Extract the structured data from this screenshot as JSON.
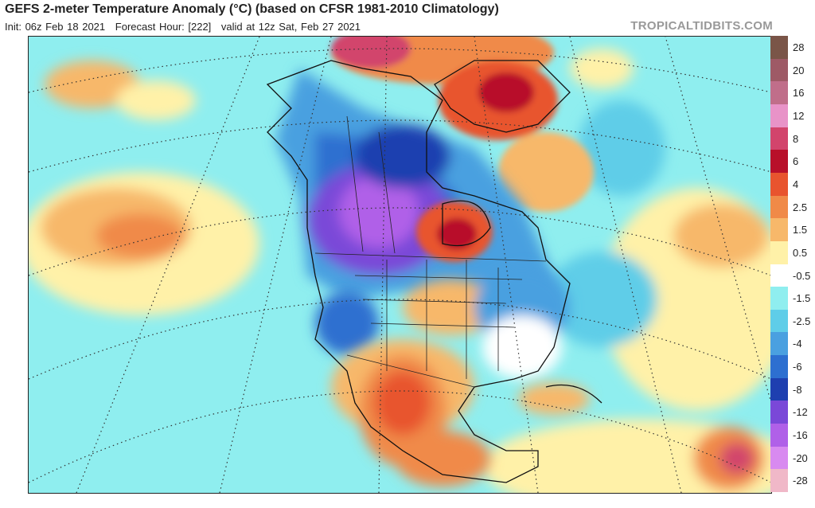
{
  "header": {
    "title": "GEFS 2-meter Temperature Anomaly (°C) (based on CFSR 1981-2010 Climatology)",
    "init": "Init: 06z Feb 18 2021",
    "forecast_hour": "Forecast Hour: [222]",
    "valid": "valid at 12z Sat, Feb 27 2021",
    "brand": "TROPICALTIDBITS.COM"
  },
  "map": {
    "region": "North America",
    "variable": "2-meter temperature anomaly",
    "units": "°C"
  },
  "colorbar": {
    "labels": [
      "28",
      "20",
      "16",
      "12",
      "8",
      "6",
      "4",
      "2.5",
      "1.5",
      "0.5",
      "-0.5",
      "-1.5",
      "-2.5",
      "-4",
      "-6",
      "-8",
      "-12",
      "-16",
      "-20",
      "-28"
    ],
    "colors": [
      "#7a5548",
      "#9e5a66",
      "#c06e8a",
      "#e893c8",
      "#d2446c",
      "#b8102a",
      "#e8542e",
      "#f08a48",
      "#f7b86a",
      "#fff1a8",
      "#ffffff",
      "#8feeef",
      "#5fcde8",
      "#4aa0e0",
      "#2d6fd0",
      "#1e3fb0",
      "#7a48d8",
      "#b060e8",
      "#d88af0",
      "#f0b8c8"
    ]
  }
}
